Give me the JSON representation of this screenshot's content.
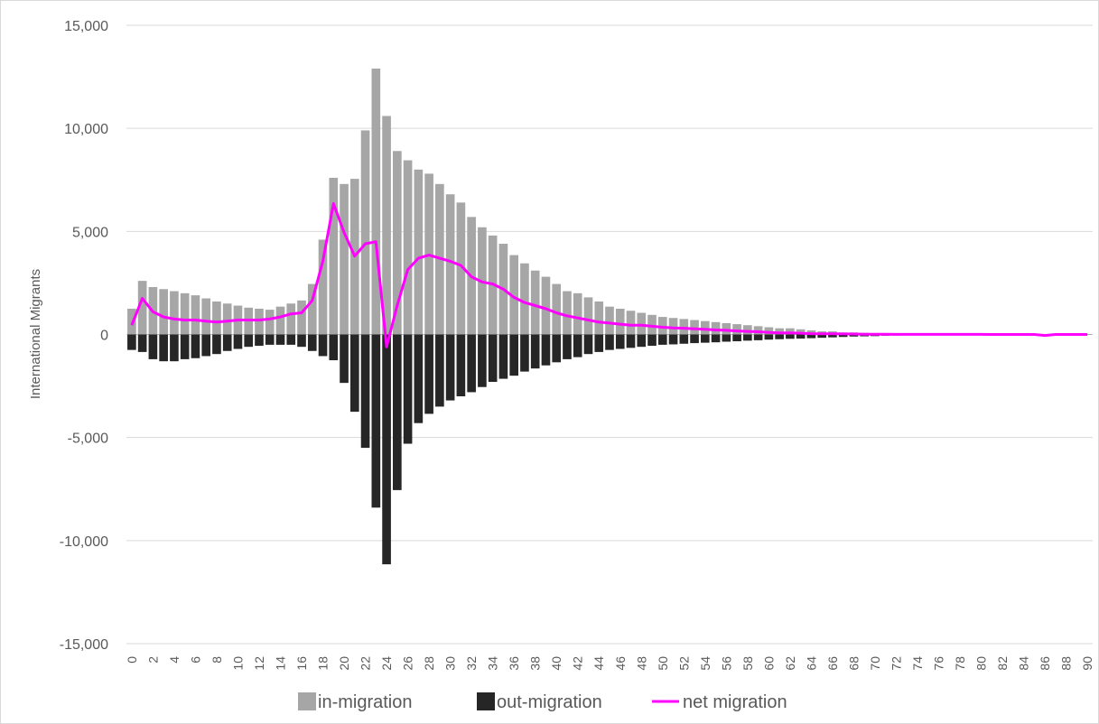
{
  "chart_data": {
    "type": "bar",
    "title": "",
    "xlabel": "",
    "ylabel": "International Migrants",
    "ylim": [
      -15000,
      15000
    ],
    "yticks": [
      15000,
      10000,
      5000,
      0,
      -5000,
      -10000,
      -15000
    ],
    "ytick_labels": [
      "15,000",
      "10,000",
      "5,000",
      "0",
      "-5,000",
      "-10,000",
      "-15,000"
    ],
    "xticks": [
      0,
      2,
      4,
      6,
      8,
      10,
      12,
      14,
      16,
      18,
      20,
      22,
      24,
      26,
      28,
      30,
      32,
      34,
      36,
      38,
      40,
      42,
      44,
      46,
      48,
      50,
      52,
      54,
      56,
      58,
      60,
      62,
      64,
      66,
      68,
      70,
      72,
      74,
      76,
      78,
      80,
      82,
      84,
      86,
      88,
      90
    ],
    "categories": [
      0,
      1,
      2,
      3,
      4,
      5,
      6,
      7,
      8,
      9,
      10,
      11,
      12,
      13,
      14,
      15,
      16,
      17,
      18,
      19,
      20,
      21,
      22,
      23,
      24,
      25,
      26,
      27,
      28,
      29,
      30,
      31,
      32,
      33,
      34,
      35,
      36,
      37,
      38,
      39,
      40,
      41,
      42,
      43,
      44,
      45,
      46,
      47,
      48,
      49,
      50,
      51,
      52,
      53,
      54,
      55,
      56,
      57,
      58,
      59,
      60,
      61,
      62,
      63,
      64,
      65,
      66,
      67,
      68,
      69,
      70,
      71,
      72,
      73,
      74,
      75,
      76,
      77,
      78,
      79,
      80,
      81,
      82,
      83,
      84,
      85,
      86,
      87,
      88,
      89,
      90
    ],
    "grid": true,
    "legend_position": "bottom",
    "series": [
      {
        "name": "in-migration",
        "type": "bar",
        "color": "#a6a6a6",
        "values": [
          1250,
          2600,
          2300,
          2200,
          2100,
          2000,
          1900,
          1750,
          1600,
          1500,
          1400,
          1300,
          1250,
          1200,
          1350,
          1500,
          1650,
          2450,
          4600,
          7600,
          7300,
          7550,
          9900,
          12900,
          10600,
          8900,
          8450,
          8000,
          7800,
          7300,
          6800,
          6400,
          5700,
          5200,
          4800,
          4400,
          3850,
          3450,
          3100,
          2800,
          2450,
          2100,
          2000,
          1800,
          1600,
          1350,
          1250,
          1150,
          1050,
          950,
          850,
          800,
          750,
          700,
          650,
          600,
          550,
          500,
          450,
          400,
          350,
          300,
          300,
          250,
          200,
          150,
          150,
          100,
          100,
          80,
          60,
          50,
          40,
          30,
          25,
          20,
          20,
          15,
          15,
          10,
          10,
          10,
          10,
          10,
          10,
          5,
          5,
          5,
          5,
          5,
          5
        ]
      },
      {
        "name": "out-migration",
        "type": "bar",
        "color": "#262626",
        "values": [
          -750,
          -850,
          -1200,
          -1300,
          -1300,
          -1200,
          -1150,
          -1050,
          -950,
          -800,
          -700,
          -600,
          -550,
          -500,
          -500,
          -500,
          -600,
          -800,
          -1050,
          -1250,
          -2350,
          -3750,
          -5500,
          -8400,
          -11150,
          -7550,
          -5300,
          -4300,
          -3850,
          -3500,
          -3200,
          -3000,
          -2800,
          -2550,
          -2300,
          -2150,
          -2000,
          -1800,
          -1650,
          -1500,
          -1350,
          -1200,
          -1100,
          -950,
          -850,
          -750,
          -700,
          -650,
          -600,
          -550,
          -500,
          -480,
          -450,
          -420,
          -400,
          -380,
          -350,
          -330,
          -300,
          -280,
          -250,
          -230,
          -210,
          -200,
          -180,
          -160,
          -140,
          -120,
          -100,
          -90,
          -80,
          -60,
          -50,
          -40,
          -30,
          -25,
          -20,
          -20,
          -15,
          -15,
          -10,
          -10,
          -10,
          -10,
          -10,
          -5,
          -5,
          -5,
          -5,
          -5,
          -5
        ]
      },
      {
        "name": "net migration",
        "type": "line",
        "color": "#ff00ff",
        "values": [
          450,
          1750,
          1100,
          850,
          750,
          700,
          700,
          650,
          600,
          650,
          700,
          700,
          700,
          750,
          850,
          1000,
          1050,
          1650,
          3550,
          6350,
          4950,
          3800,
          4400,
          4500,
          -600,
          1400,
          3150,
          3700,
          3850,
          3700,
          3550,
          3350,
          2800,
          2550,
          2450,
          2200,
          1800,
          1550,
          1400,
          1250,
          1050,
          900,
          800,
          700,
          600,
          550,
          500,
          450,
          450,
          400,
          350,
          320,
          300,
          270,
          250,
          220,
          200,
          170,
          150,
          130,
          100,
          80,
          80,
          60,
          40,
          30,
          30,
          25,
          20,
          15,
          15,
          10,
          5,
          5,
          5,
          5,
          5,
          5,
          5,
          5,
          5,
          0,
          0,
          0,
          0,
          0,
          -50,
          0,
          0,
          0,
          0
        ]
      }
    ]
  }
}
